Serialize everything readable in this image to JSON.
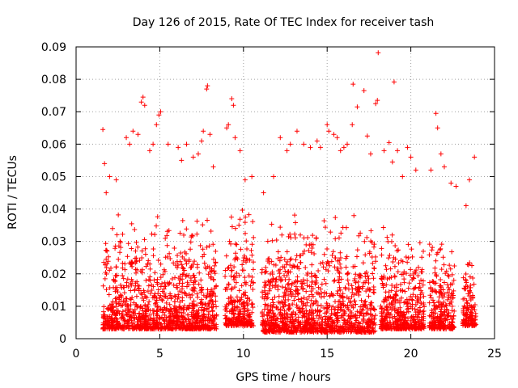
{
  "chart_data": {
    "type": "scatter",
    "title": "Day 126 of 2015, Rate Of TEC Index for receiver tash",
    "xlabel": "GPS time / hours",
    "ylabel": "ROTI / TECUs",
    "xlim": [
      0,
      25
    ],
    "ylim": [
      0,
      0.09
    ],
    "x_ticks": [
      0,
      5,
      10,
      15,
      20,
      25
    ],
    "x_tick_labels": [
      "0",
      "5",
      "10",
      "15",
      "20",
      "25"
    ],
    "y_ticks": [
      0,
      0.01,
      0.02,
      0.03,
      0.04,
      0.05,
      0.06,
      0.07,
      0.08,
      0.09
    ],
    "y_tick_labels": [
      "0",
      "0.01",
      "0.02",
      "0.03",
      "0.04",
      "0.05",
      "0.06",
      "0.07",
      "0.08",
      "0.09"
    ],
    "grid": true,
    "marker": "+",
    "series": [
      {
        "color": "#ff0000",
        "points": [
          [
            1.6,
            0.0645
          ],
          [
            1.7,
            0.054
          ],
          [
            1.8,
            0.045
          ],
          [
            2.0,
            0.05
          ],
          [
            2.4,
            0.049
          ],
          [
            3.0,
            0.062
          ],
          [
            3.2,
            0.06
          ],
          [
            3.4,
            0.064
          ],
          [
            3.7,
            0.063
          ],
          [
            3.9,
            0.073
          ],
          [
            4.0,
            0.0745
          ],
          [
            4.1,
            0.072
          ],
          [
            4.4,
            0.058
          ],
          [
            4.6,
            0.06
          ],
          [
            4.8,
            0.066
          ],
          [
            4.95,
            0.069
          ],
          [
            5.05,
            0.07
          ],
          [
            5.5,
            0.06
          ],
          [
            6.1,
            0.059
          ],
          [
            6.3,
            0.055
          ],
          [
            6.6,
            0.06
          ],
          [
            7.0,
            0.056
          ],
          [
            7.3,
            0.057
          ],
          [
            7.5,
            0.061
          ],
          [
            7.6,
            0.064
          ],
          [
            7.8,
            0.077
          ],
          [
            7.85,
            0.078
          ],
          [
            8.0,
            0.063
          ],
          [
            8.2,
            0.053
          ],
          [
            9.0,
            0.065
          ],
          [
            9.1,
            0.066
          ],
          [
            9.3,
            0.074
          ],
          [
            9.4,
            0.072
          ],
          [
            9.5,
            0.062
          ],
          [
            9.8,
            0.058
          ],
          [
            10.1,
            0.049
          ],
          [
            10.5,
            0.05
          ],
          [
            11.2,
            0.045
          ],
          [
            11.8,
            0.05
          ],
          [
            12.2,
            0.062
          ],
          [
            12.6,
            0.058
          ],
          [
            12.8,
            0.06
          ],
          [
            13.2,
            0.064
          ],
          [
            13.6,
            0.06
          ],
          [
            14.0,
            0.059
          ],
          [
            14.4,
            0.061
          ],
          [
            14.6,
            0.059
          ],
          [
            15.0,
            0.066
          ],
          [
            15.1,
            0.064
          ],
          [
            15.4,
            0.063
          ],
          [
            15.6,
            0.062
          ],
          [
            15.8,
            0.058
          ],
          [
            16.0,
            0.059
          ],
          [
            16.2,
            0.06
          ],
          [
            16.5,
            0.066
          ],
          [
            16.55,
            0.0785
          ],
          [
            16.8,
            0.0715
          ],
          [
            17.2,
            0.0765
          ],
          [
            17.4,
            0.0625
          ],
          [
            17.6,
            0.057
          ],
          [
            17.9,
            0.0725
          ],
          [
            18.0,
            0.0735
          ],
          [
            18.05,
            0.0882
          ],
          [
            18.4,
            0.058
          ],
          [
            18.7,
            0.0605
          ],
          [
            18.9,
            0.0545
          ],
          [
            19.0,
            0.0792
          ],
          [
            19.2,
            0.058
          ],
          [
            19.5,
            0.05
          ],
          [
            19.8,
            0.059
          ],
          [
            20.0,
            0.056
          ],
          [
            20.3,
            0.052
          ],
          [
            21.2,
            0.052
          ],
          [
            21.5,
            0.0695
          ],
          [
            21.6,
            0.065
          ],
          [
            21.8,
            0.057
          ],
          [
            22.0,
            0.053
          ],
          [
            22.4,
            0.048
          ],
          [
            22.7,
            0.047
          ],
          [
            23.3,
            0.041
          ],
          [
            23.5,
            0.049
          ],
          [
            23.8,
            0.056
          ],
          [
            2.2,
            0.01
          ],
          [
            2.6,
            0.004
          ],
          [
            3.1,
            0.008
          ],
          [
            3.5,
            0.006
          ],
          [
            4.2,
            0.007
          ],
          [
            5.2,
            0.006
          ],
          [
            6.0,
            0.004
          ],
          [
            6.6,
            0.003
          ],
          [
            7.2,
            0.006
          ],
          [
            8.3,
            0.006
          ],
          [
            9.6,
            0.006
          ],
          [
            10.4,
            0.005
          ],
          [
            11.5,
            0.008
          ],
          [
            12.4,
            0.005
          ],
          [
            13.4,
            0.002
          ],
          [
            14.2,
            0.004
          ],
          [
            15.3,
            0.004
          ],
          [
            16.0,
            0.005
          ],
          [
            16.9,
            0.004
          ],
          [
            18.6,
            0.005
          ],
          [
            19.2,
            0.003
          ],
          [
            20.6,
            0.005
          ],
          [
            21.7,
            0.006
          ],
          [
            22.1,
            0.003
          ],
          [
            22.5,
            0.005
          ],
          [
            23.6,
            0.006
          ]
        ]
      }
    ],
    "coverage_segments": [
      {
        "x_start": 1.6,
        "x_end": 8.4,
        "y_min": 0.003,
        "y_max": 0.04
      },
      {
        "x_start": 8.9,
        "x_end": 10.6,
        "y_min": 0.004,
        "y_max": 0.045
      },
      {
        "x_start": 11.1,
        "x_end": 17.9,
        "y_min": 0.002,
        "y_max": 0.04
      },
      {
        "x_start": 18.2,
        "x_end": 20.8,
        "y_min": 0.003,
        "y_max": 0.035
      },
      {
        "x_start": 21.1,
        "x_end": 22.6,
        "y_min": 0.003,
        "y_max": 0.035
      },
      {
        "x_start": 23.1,
        "x_end": 23.9,
        "y_min": 0.004,
        "y_max": 0.03
      }
    ]
  }
}
